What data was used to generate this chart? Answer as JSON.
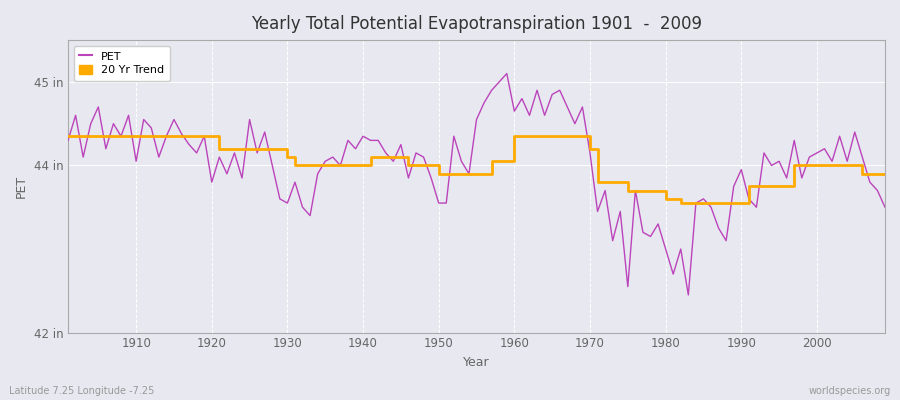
{
  "title": "Yearly Total Potential Evapotranspiration 1901  -  2009",
  "xlabel": "Year",
  "ylabel": "PET",
  "subtitle_left": "Latitude 7.25 Longitude -7.25",
  "subtitle_right": "worldspecies.org",
  "ylim": [
    42.0,
    45.5
  ],
  "ytick_positions": [
    42,
    44,
    45
  ],
  "ytick_labels": [
    "42 in",
    "44 in",
    "45 in"
  ],
  "xlim": [
    1901,
    2009
  ],
  "bg_color": "#e8e8f0",
  "pet_color": "#bb44bb",
  "trend_color": "#ffaa00",
  "years": [
    1901,
    1902,
    1903,
    1904,
    1905,
    1906,
    1907,
    1908,
    1909,
    1910,
    1911,
    1912,
    1913,
    1914,
    1915,
    1916,
    1917,
    1918,
    1919,
    1920,
    1921,
    1922,
    1923,
    1924,
    1925,
    1926,
    1927,
    1928,
    1929,
    1930,
    1931,
    1932,
    1933,
    1934,
    1935,
    1936,
    1937,
    1938,
    1939,
    1940,
    1941,
    1942,
    1943,
    1944,
    1945,
    1946,
    1947,
    1948,
    1949,
    1950,
    1951,
    1952,
    1953,
    1954,
    1955,
    1956,
    1957,
    1958,
    1959,
    1960,
    1961,
    1962,
    1963,
    1964,
    1965,
    1966,
    1967,
    1968,
    1969,
    1970,
    1971,
    1972,
    1973,
    1974,
    1975,
    1976,
    1977,
    1978,
    1979,
    1980,
    1981,
    1982,
    1983,
    1984,
    1985,
    1986,
    1987,
    1988,
    1989,
    1990,
    1991,
    1992,
    1993,
    1994,
    1995,
    1996,
    1997,
    1998,
    1999,
    2000,
    2001,
    2002,
    2003,
    2004,
    2005,
    2006,
    2007,
    2008,
    2009
  ],
  "pet": [
    44.3,
    44.6,
    44.1,
    44.5,
    44.7,
    44.2,
    44.5,
    44.35,
    44.6,
    44.05,
    44.55,
    44.45,
    44.1,
    44.35,
    44.55,
    44.38,
    44.25,
    44.15,
    44.35,
    43.8,
    44.1,
    43.9,
    44.15,
    43.85,
    44.55,
    44.15,
    44.4,
    44.0,
    43.6,
    43.55,
    43.8,
    43.5,
    43.4,
    43.9,
    44.05,
    44.1,
    44.0,
    44.3,
    44.2,
    44.35,
    44.3,
    44.3,
    44.15,
    44.05,
    44.25,
    43.85,
    44.15,
    44.1,
    43.85,
    43.55,
    43.55,
    44.35,
    44.05,
    43.9,
    44.55,
    44.75,
    44.9,
    45.0,
    45.1,
    44.65,
    44.8,
    44.6,
    44.9,
    44.6,
    44.85,
    44.9,
    44.7,
    44.5,
    44.7,
    44.15,
    43.45,
    43.7,
    43.1,
    43.45,
    42.55,
    43.7,
    43.2,
    43.15,
    43.3,
    43.0,
    42.7,
    43.0,
    42.45,
    43.55,
    43.6,
    43.5,
    43.25,
    43.1,
    43.75,
    43.95,
    43.6,
    43.5,
    44.15,
    44.0,
    44.05,
    43.85,
    44.3,
    43.85,
    44.1,
    44.15,
    44.2,
    44.05,
    44.35,
    44.05,
    44.4,
    44.1,
    43.8,
    43.7,
    43.5
  ],
  "trend": [
    44.35,
    44.35,
    44.35,
    44.35,
    44.35,
    44.35,
    44.35,
    44.35,
    44.35,
    44.35,
    44.35,
    44.35,
    44.35,
    44.35,
    44.35,
    44.35,
    44.35,
    44.35,
    44.35,
    44.35,
    44.2,
    44.2,
    44.2,
    44.2,
    44.2,
    44.2,
    44.2,
    44.2,
    44.2,
    44.1,
    44.0,
    44.0,
    44.0,
    44.0,
    44.0,
    44.0,
    44.0,
    44.0,
    44.0,
    44.0,
    44.1,
    44.1,
    44.1,
    44.1,
    44.1,
    44.0,
    44.0,
    44.0,
    44.0,
    43.9,
    43.9,
    43.9,
    43.9,
    43.9,
    43.9,
    43.9,
    44.05,
    44.05,
    44.05,
    44.35,
    44.35,
    44.35,
    44.35,
    44.35,
    44.35,
    44.35,
    44.35,
    44.35,
    44.35,
    44.2,
    43.8,
    43.8,
    43.8,
    43.8,
    43.7,
    43.7,
    43.7,
    43.7,
    43.7,
    43.6,
    43.6,
    43.55,
    43.55,
    43.55,
    43.55,
    43.55,
    43.55,
    43.55,
    43.55,
    43.55,
    43.75,
    43.75,
    43.75,
    43.75,
    43.75,
    43.75,
    44.0,
    44.0,
    44.0,
    44.0,
    44.0,
    44.0,
    44.0,
    44.0,
    44.0,
    43.9,
    43.9,
    43.9,
    43.9
  ]
}
